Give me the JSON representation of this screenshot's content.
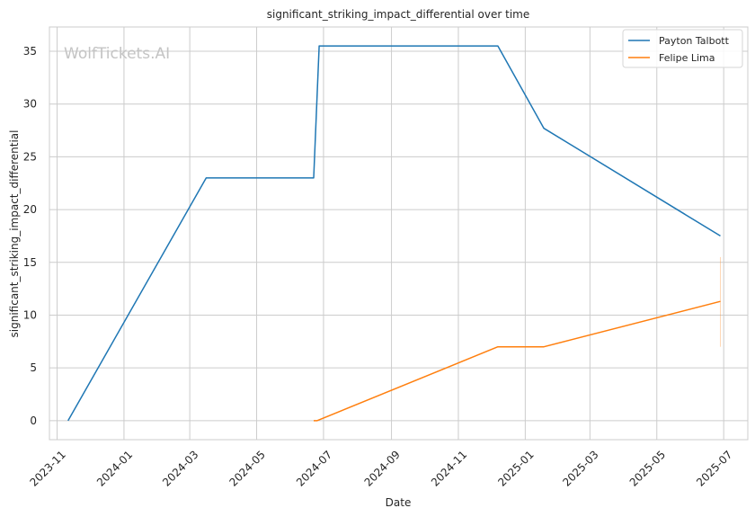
{
  "chart_data": {
    "type": "line",
    "title": "significant_striking_impact_differential over time",
    "xlabel": "Date",
    "ylabel": "significant_striking_impact_differential",
    "watermark": "WolfTickets.AI",
    "x_ticks": [
      "2023-11",
      "2024-01",
      "2024-03",
      "2024-05",
      "2024-07",
      "2024-09",
      "2024-11",
      "2025-01",
      "2025-03",
      "2025-05",
      "2025-07"
    ],
    "y_ticks": [
      0,
      5,
      10,
      15,
      20,
      25,
      30,
      35
    ],
    "xlim": [
      "2023-10-25",
      "2025-07-23"
    ],
    "ylim": [
      -1.8,
      37.3
    ],
    "grid": true,
    "legend_position": "top-right",
    "series": [
      {
        "name": "Payton Talbott",
        "color": "#1f77b4",
        "points": [
          {
            "x": "2023-11-11",
            "y": 0
          },
          {
            "x": "2024-03-16",
            "y": 23.0
          },
          {
            "x": "2024-06-22",
            "y": 23.0
          },
          {
            "x": "2024-06-27",
            "y": 35.5
          },
          {
            "x": "2024-12-07",
            "y": 35.5
          },
          {
            "x": "2025-01-18",
            "y": 27.7
          },
          {
            "x": "2025-06-28",
            "y": 17.5
          }
        ]
      },
      {
        "name": "Felipe Lima",
        "color": "#ff7f0e",
        "points": [
          {
            "x": "2024-06-22",
            "y": 0
          },
          {
            "x": "2024-06-25",
            "y": 0
          },
          {
            "x": "2024-12-07",
            "y": 7.0
          },
          {
            "x": "2025-01-18",
            "y": 7.0
          },
          {
            "x": "2025-06-28",
            "y": 11.3
          }
        ],
        "error_band": {
          "x": "2025-06-28",
          "low": 7.0,
          "high": 15.5
        }
      }
    ]
  }
}
